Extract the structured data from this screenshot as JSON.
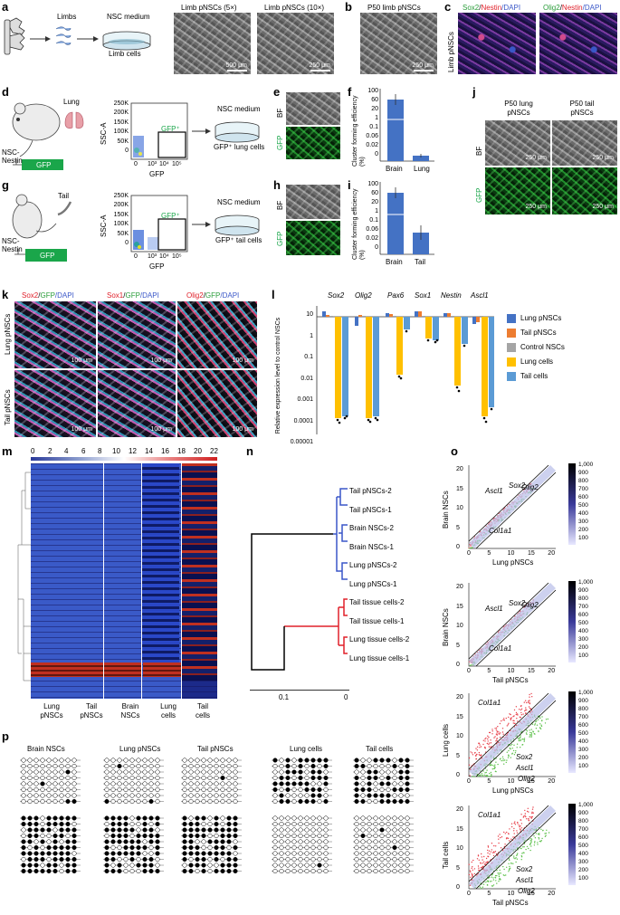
{
  "panels": {
    "a": {
      "letter": "a",
      "limbs": "Limbs",
      "nsc_medium": "NSC medium",
      "limb_cells": "Limb cells",
      "img1_title": "Limb pNSCs (5×)",
      "img2_title": "Limb pNSCs (10×)",
      "scale1": "500 μm",
      "scale2": "250 μm"
    },
    "b": {
      "letter": "b",
      "title": "P50 limb pNSCs",
      "scale": "250 μm"
    },
    "c": {
      "letter": "c",
      "row_label": "Limb pNSCs",
      "stain1": [
        "Sox2",
        "/",
        "Nestin",
        "/DAPI"
      ],
      "stain2": [
        "Olig2",
        "/",
        "Nestin",
        "/DAPI"
      ]
    },
    "d": {
      "letter": "d",
      "organ": "Lung",
      "nsc_nestin": "NSC-\nNestin",
      "gfp": "GFP",
      "ssc": "SSC-A",
      "y_ticks": [
        "250K",
        "200K",
        "150K",
        "100K",
        "50K",
        "0"
      ],
      "x_ticks": [
        "0",
        "10³",
        "10⁴",
        "10⁵"
      ],
      "gate": "GFP⁺",
      "x_label": "GFP",
      "nsc_medium": "NSC medium",
      "cells": "GFP⁺ lung cells"
    },
    "e": {
      "letter": "e",
      "bf": "BF",
      "gfp": "GFP"
    },
    "f": {
      "letter": "f",
      "ylabel": "Cluster forming efficiency (%)",
      "y_ticks": [
        "100",
        "60",
        "20",
        "1",
        "0.1",
        "0.06",
        "0.02",
        "0"
      ],
      "categories": [
        "Brain",
        "Lung"
      ]
    },
    "g": {
      "letter": "g",
      "organ": "Tail",
      "nsc_nestin": "NSC-\nNestin",
      "gfp": "GFP",
      "ssc": "SSC-A",
      "y_ticks": [
        "250K",
        "200K",
        "150K",
        "100K",
        "50K",
        "0"
      ],
      "x_ticks": [
        "0",
        "10³",
        "10⁴",
        "10⁵"
      ],
      "gate": "GFP⁺",
      "x_label": "GFP",
      "nsc_medium": "NSC medium",
      "cells": "GFP⁺ tail cells"
    },
    "h": {
      "letter": "h",
      "bf": "BF",
      "gfp": "GFP"
    },
    "i": {
      "letter": "i",
      "ylabel": "Cluster forming efficiency (%)",
      "y_ticks": [
        "100",
        "60",
        "20",
        "1",
        "0.1",
        "0.06",
        "0.02",
        "0"
      ],
      "categories": [
        "Brain",
        "Tail"
      ]
    },
    "j": {
      "letter": "j",
      "col1": "P50 lung\npNSCs",
      "col2": "P50 tail\npNSCs",
      "bf": "BF",
      "gfp": "GFP",
      "scale": "250 μm"
    },
    "k": {
      "letter": "k",
      "row1": "Lung pNSCs",
      "row2": "Tail pNSCs",
      "stain1": [
        "Sox2",
        "/",
        "GFP",
        "/DAPI"
      ],
      "stain2": [
        "Sox1",
        "/",
        "GFP",
        "/DAPI"
      ],
      "stain3": [
        "Olig2",
        "/",
        "GFP",
        "/DAPI"
      ],
      "scale": "100 μm"
    },
    "l": {
      "letter": "l",
      "ylabel": "Relative expression level to control NSCs",
      "y_ticks": [
        "10",
        "1",
        "0.1",
        "0.01",
        "0.001",
        "0.0001",
        "0.00001"
      ],
      "genes": [
        "Sox2",
        "Olig2",
        "Pax6",
        "Sox1",
        "Nestin",
        "Ascl1"
      ],
      "legend": [
        "Lung pNSCs",
        "Tail pNSCs",
        "Control NSCs",
        "Lung cells",
        "Tail cells"
      ]
    },
    "m": {
      "letter": "m",
      "scale_ticks": [
        "0",
        "2",
        "4",
        "6",
        "8",
        "10",
        "12",
        "14",
        "16",
        "18",
        "20",
        "22"
      ],
      "columns": [
        "Lung\npNSCs",
        "Tail\npNSCs",
        "Brain\nNSCs",
        "Lung\ncells",
        "Tail\ncells"
      ]
    },
    "n": {
      "letter": "n",
      "leaves": [
        "Tail pNSCs-2",
        "Tail pNSCs-1",
        "Brain NSCs-2",
        "Brain NSCs-1",
        "Lung pNSCs-2",
        "Lung pNSCs-1",
        "Tail tissue cells-2",
        "Tail tissue cells-1",
        "Lung tissue cells-2",
        "Lung tissue cells-1"
      ],
      "x_ticks": [
        "0.1",
        "0"
      ]
    },
    "o": {
      "letter": "o",
      "plots": [
        {
          "ylabel": "Brain NSCs",
          "xlabel": "Lung pNSCs",
          "genes": [
            "Sox2",
            "Ascl1",
            "Olig2",
            "Col1a1"
          ]
        },
        {
          "ylabel": "Brain NSCs",
          "xlabel": "Tail pNSCs",
          "genes": [
            "Sox2",
            "Ascl1",
            "Olig2",
            "Col1a1"
          ]
        },
        {
          "ylabel": "Lung cells",
          "xlabel": "Lung pNSCs",
          "genes": [
            "Col1a1",
            "Sox2",
            "Ascl1",
            "Olig2"
          ]
        },
        {
          "ylabel": "Tail cells",
          "xlabel": "Tail pNSCs",
          "genes": [
            "Col1a1",
            "Sox2",
            "Ascl1",
            "Olig2"
          ]
        }
      ],
      "axis_ticks": [
        "0",
        "5",
        "10",
        "15",
        "20"
      ],
      "cbar_ticks": [
        "1,000",
        "900",
        "800",
        "700",
        "600",
        "500",
        "400",
        "300",
        "200",
        "100"
      ]
    },
    "p": {
      "letter": "p",
      "groups": [
        "Brain NSCs",
        "Lung pNSCs",
        "Tail pNSCs",
        "Lung cells",
        "Tail cells"
      ]
    }
  },
  "colors": {
    "blue": "#4472c4",
    "orange": "#ed7d31",
    "gray": "#a5a5a5",
    "yellow": "#ffc000",
    "lightblue": "#5b9bd5",
    "gfp_green": "#1aa64a",
    "red": "#e0202a",
    "green_text": "#2a9d3a"
  }
}
